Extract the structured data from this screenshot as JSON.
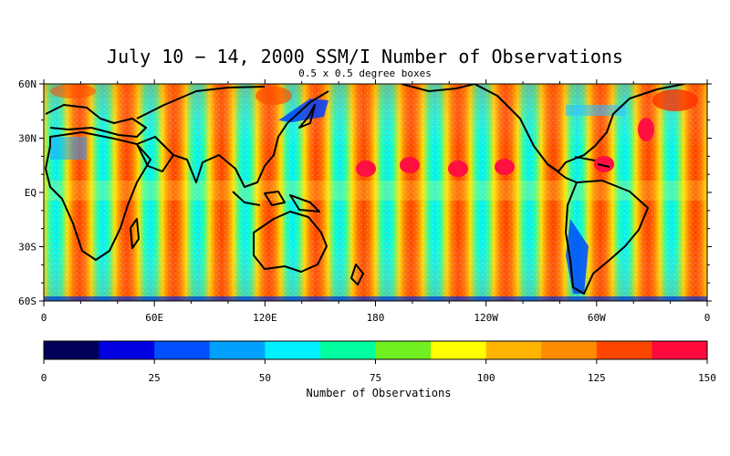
{
  "title": "July 10 − 14, 2000 SSM/I Number of Observations",
  "subtitle": "0.5 x 0.5 degree boxes",
  "map": {
    "lat_labels": [
      "60N",
      "30N",
      "EQ",
      "30S",
      "60S"
    ],
    "lon_labels": [
      "0",
      "60E",
      "120E",
      "180",
      "120W",
      "60W",
      "0"
    ],
    "lat_range": [
      -60,
      60
    ],
    "lon_range": [
      0,
      360
    ],
    "land_color": "#000000",
    "swath_count": 14
  },
  "colorbar": {
    "label": "Number of Observations",
    "ticks": [
      "0",
      "25",
      "50",
      "75",
      "100",
      "125",
      "150"
    ],
    "range": [
      0,
      150
    ],
    "colors": [
      "#00005a",
      "#0000e0",
      "#0050ff",
      "#00a0ff",
      "#00f0ff",
      "#00ff9e",
      "#70f020",
      "#ffff00",
      "#ffb400",
      "#ff8c00",
      "#ff4600",
      "#ff0a3c"
    ]
  }
}
